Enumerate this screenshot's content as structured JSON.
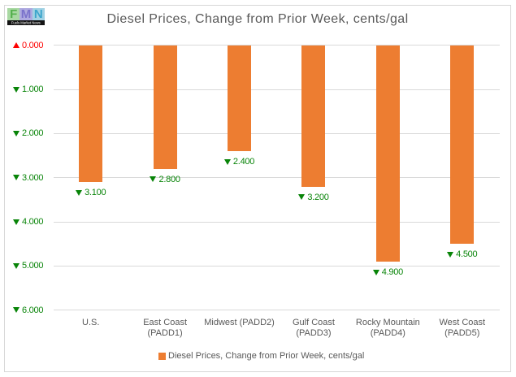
{
  "logo": {
    "tiles": [
      {
        "letter": "F",
        "bg": "#a8d8a2",
        "fg": "#53b04c"
      },
      {
        "letter": "M",
        "bg": "#aeaae0",
        "fg": "#7a72cb"
      },
      {
        "letter": "N",
        "bg": "#a2d2e4",
        "fg": "#3ba6cc"
      }
    ],
    "caption": "Fuels Market News",
    "caption_bg": "#141414",
    "caption_color": "#ffffff"
  },
  "chart_data": {
    "type": "bar",
    "title": "Diesel Prices, Change from Prior Week, cents/gal",
    "title_color": "#595959",
    "categories": [
      "U.S.",
      "East Coast (PADD1)",
      "Midwest (PADD2)",
      "Gulf Coast (PADD3)",
      "Rocky Mountain (PADD4)",
      "West Coast (PADD5)"
    ],
    "category_lines": [
      [
        "U.S."
      ],
      [
        "East Coast",
        "(PADD1)"
      ],
      [
        "Midwest (PADD2)"
      ],
      [
        "Gulf Coast",
        "(PADD3)"
      ],
      [
        "Rocky Mountain",
        "(PADD4)"
      ],
      [
        "West Coast",
        "(PADD5)"
      ]
    ],
    "series": [
      {
        "name": "Diesel Prices, Change from Prior Week, cents/gal",
        "values": [
          -3.1,
          -2.8,
          -2.4,
          -3.2,
          -4.9,
          -4.5
        ]
      }
    ],
    "value_labels": [
      "3.100",
      "2.800",
      "2.400",
      "3.200",
      "4.900",
      "4.500"
    ],
    "value_label_direction": "down",
    "value_label_color": "#088408",
    "bar_color": "#ED7D31",
    "y_axis_ticks": [
      {
        "label": "0.000",
        "value": 0,
        "direction": "up",
        "color": "#fe0000"
      },
      {
        "label": "1.000",
        "value": 1,
        "direction": "down",
        "color": "#088408"
      },
      {
        "label": "2.000",
        "value": 2,
        "direction": "down",
        "color": "#088408"
      },
      {
        "label": "3.000",
        "value": 3,
        "direction": "down",
        "color": "#088408"
      },
      {
        "label": "4.000",
        "value": 4,
        "direction": "down",
        "color": "#088408"
      },
      {
        "label": "5.000",
        "value": 5,
        "direction": "down",
        "color": "#088408"
      },
      {
        "label": "6.000",
        "value": 6,
        "direction": "down",
        "color": "#088408"
      }
    ],
    "ylim": [
      0,
      6
    ],
    "grid": true,
    "gridline_color": "#d9d9d9",
    "category_color": "#595959",
    "legend_position": "bottom"
  },
  "legend": {
    "swatch_color": "#ED7D31",
    "label": "Diesel Prices, Change from Prior Week, cents/gal",
    "color": "#595959"
  }
}
